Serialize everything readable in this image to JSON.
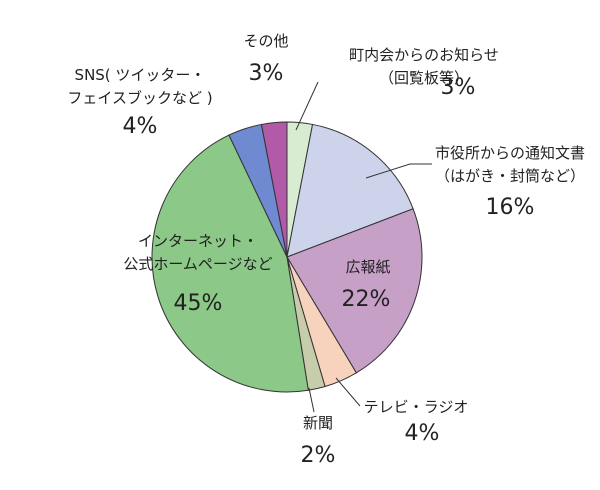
{
  "chart_data": {
    "type": "pie",
    "start_angle_deg": 0,
    "direction": "clockwise",
    "legend": "none",
    "slices": [
      {
        "key": "neighborhood",
        "label_lines": [
          "町内会からのお知らせ",
          "（回覧板等）"
        ],
        "value": 3,
        "value_label": "3%",
        "color": "#d8ecd2"
      },
      {
        "key": "city-office",
        "label_lines": [
          "市役所からの通知文書",
          "（はがき・封筒など）"
        ],
        "value": 16,
        "value_label": "16%",
        "color": "#cdd3ea"
      },
      {
        "key": "bulletin",
        "label_lines": [
          "広報紙"
        ],
        "value": 22,
        "value_label": "22%",
        "color": "#c7a0c8"
      },
      {
        "key": "tv-radio",
        "label_lines": [
          "テレビ・ラジオ"
        ],
        "value": 4,
        "value_label": "4%",
        "color": "#f7d3bd"
      },
      {
        "key": "newspaper",
        "label_lines": [
          "新聞"
        ],
        "value": 2,
        "value_label": "2%",
        "color": "#c7ccab"
      },
      {
        "key": "internet",
        "label_lines": [
          "インターネット・",
          "公式ホームページなど"
        ],
        "value": 45,
        "value_label": "45%",
        "color": "#8cc888"
      },
      {
        "key": "sns",
        "label_lines": [
          "SNS( ツイッター・",
          "フェイスブックなど )"
        ],
        "value": 4,
        "value_label": "4%",
        "color": "#6f8ad0"
      },
      {
        "key": "other",
        "label_lines": [
          "その他"
        ],
        "value": 3,
        "value_label": "3%",
        "color": "#b05aa8"
      }
    ]
  }
}
